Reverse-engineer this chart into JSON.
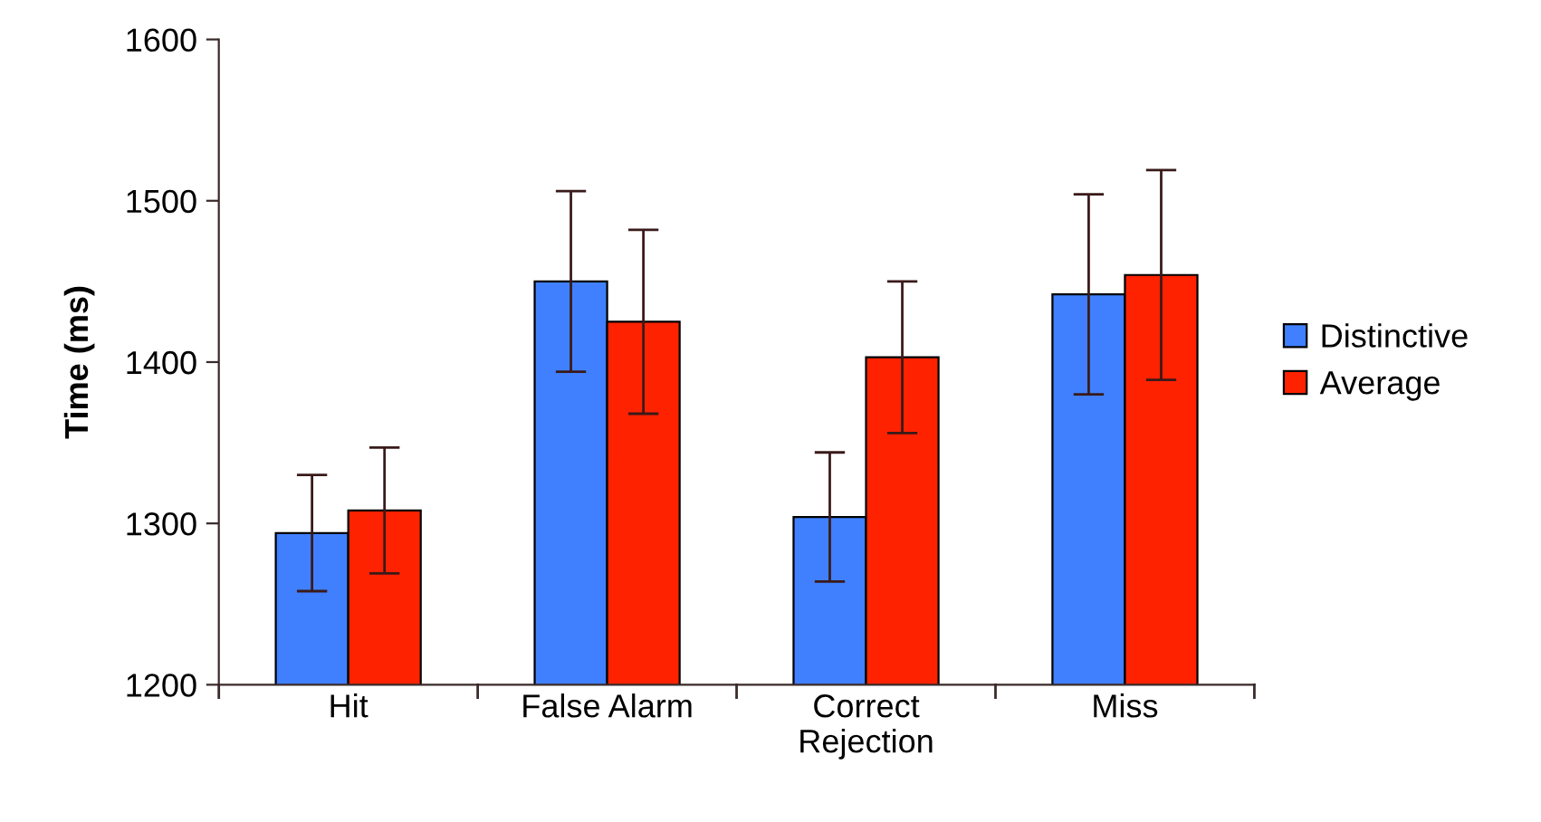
{
  "chart_data": {
    "type": "bar",
    "ylabel": "Time (ms)",
    "categories": [
      "Hit",
      "False Alarm",
      "Correct\nRejection",
      "Miss"
    ],
    "series": [
      {
        "name": "Distinctive",
        "color": "#4080ff",
        "values": [
          1294,
          1450,
          1304,
          1442
        ],
        "errors": [
          36,
          56,
          40,
          62
        ]
      },
      {
        "name": "Average",
        "color": "#ff2200",
        "values": [
          1308,
          1425,
          1403,
          1454
        ],
        "errors": [
          39,
          57,
          47,
          65
        ]
      }
    ],
    "ylim": [
      1200,
      1600
    ],
    "yticks": [
      1200,
      1300,
      1400,
      1500,
      1600
    ],
    "grid": false,
    "legend": "right"
  }
}
